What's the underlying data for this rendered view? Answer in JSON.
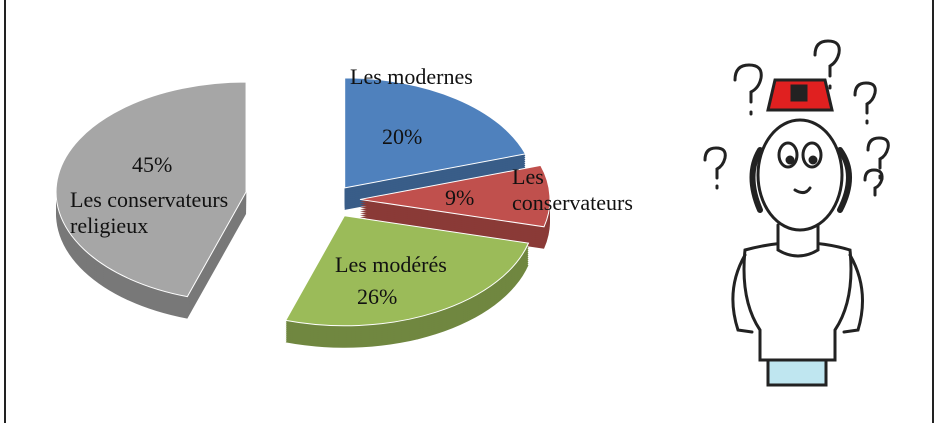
{
  "chart_data": {
    "type": "pie",
    "categories": [
      "Les modernes",
      "Les conservateurs",
      "Les modérés",
      "Les conservateurs religieux"
    ],
    "values": [
      20,
      9,
      26,
      45
    ],
    "value_labels": [
      "20%",
      "9%",
      "26%",
      "45%"
    ],
    "colors": [
      "#4f81bd",
      "#c0504d",
      "#9bbb59",
      "#a6a6a6"
    ]
  }
}
